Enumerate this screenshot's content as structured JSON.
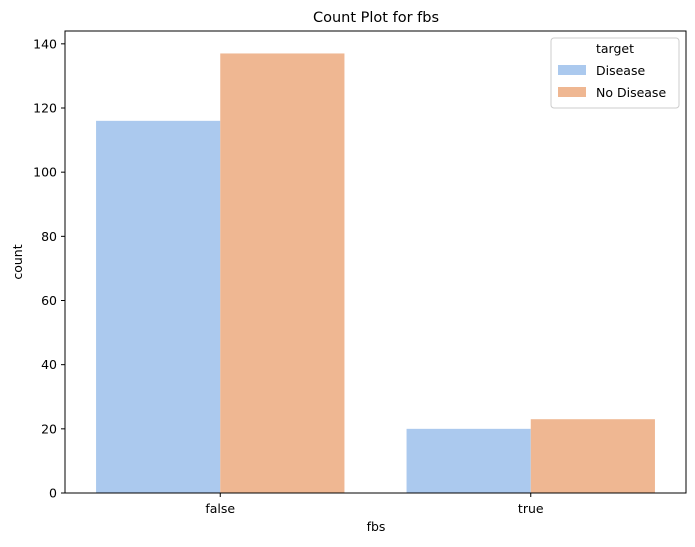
{
  "chart_data": {
    "type": "bar",
    "title": "Count Plot for fbs",
    "xlabel": "fbs",
    "ylabel": "count",
    "categories": [
      "false",
      "true"
    ],
    "series": [
      {
        "name": "Disease",
        "values": [
          116,
          20
        ],
        "color": "#abc9ee"
      },
      {
        "name": "No Disease",
        "values": [
          137,
          23
        ],
        "color": "#efb792"
      }
    ],
    "ylim": [
      0,
      144
    ],
    "yticks": [
      0,
      20,
      40,
      60,
      80,
      100,
      120,
      140
    ],
    "legend": {
      "title": "target",
      "placement": "top-right"
    },
    "grid": false
  }
}
